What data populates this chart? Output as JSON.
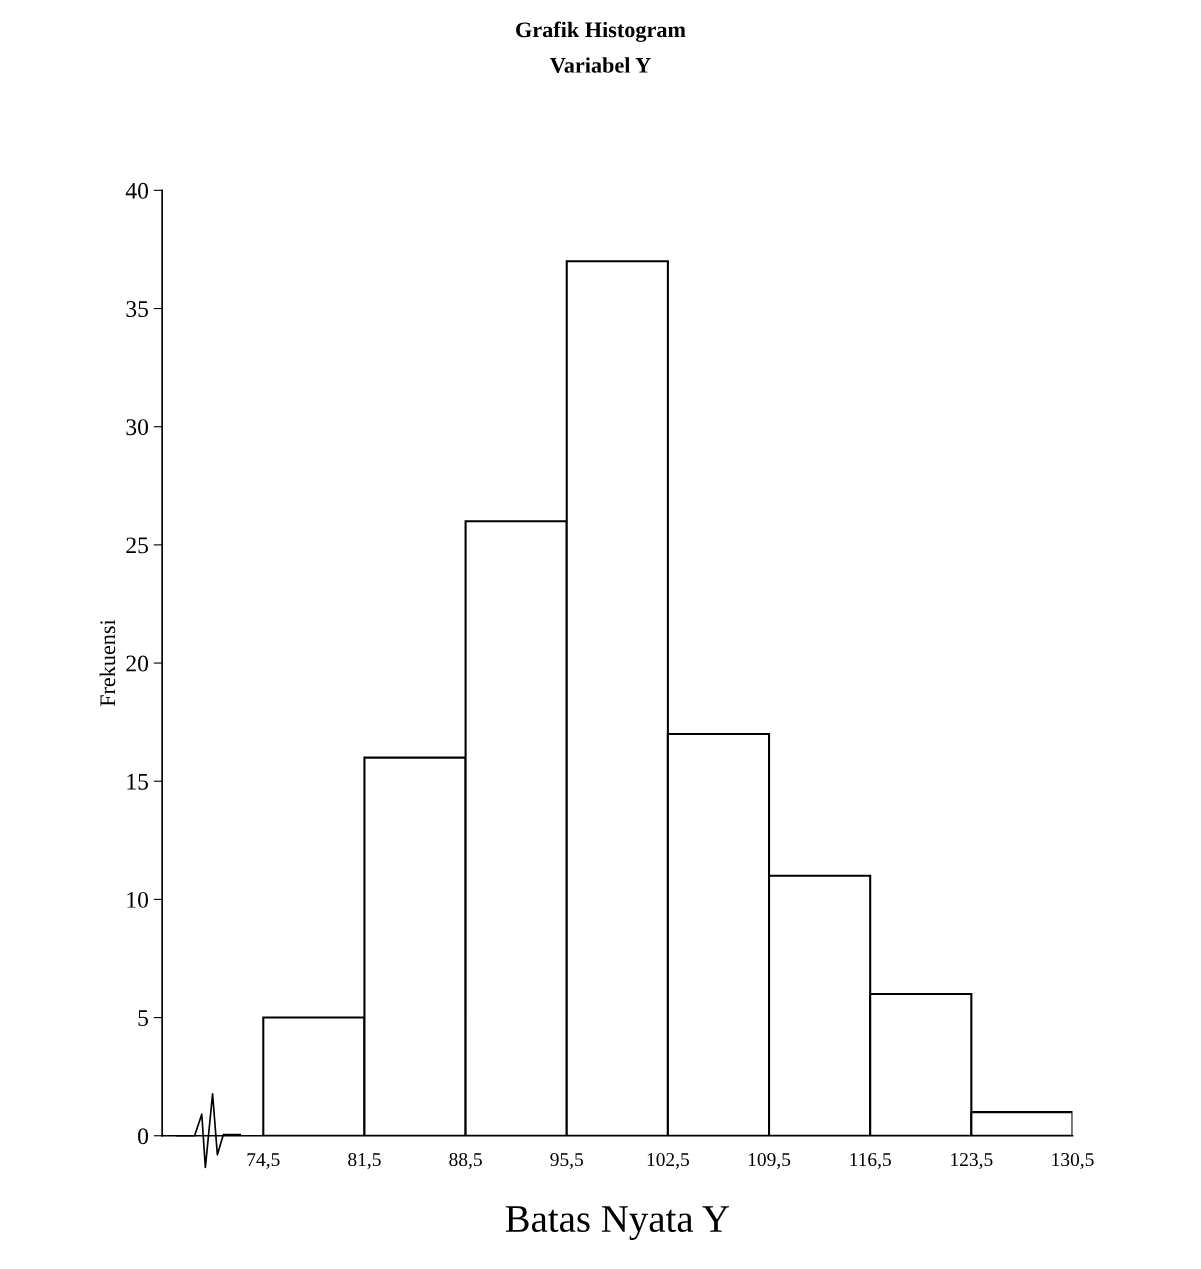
{
  "chart_data": {
    "type": "histogram",
    "title": "Grafik Histogram",
    "subtitle": "Variabel Y",
    "xlabel": "Batas Nyata Y",
    "ylabel": "Frekuensi",
    "bins": [
      74.5,
      81.5,
      88.5,
      95.5,
      102.5,
      109.5,
      116.5,
      123.5,
      130.5
    ],
    "values": [
      5,
      16,
      26,
      37,
      17,
      11,
      6,
      1
    ],
    "color": "#ffffff",
    "xlim": [
      67.5,
      130.5
    ],
    "xticks": [
      {
        "value": 74.5,
        "label": "74,5"
      },
      {
        "value": 81.5,
        "label": "81,5"
      },
      {
        "value": 88.5,
        "label": "88,5"
      },
      {
        "value": 95.5,
        "label": "95,5"
      },
      {
        "value": 102.5,
        "label": "102,5"
      },
      {
        "value": 109.5,
        "label": "109,5"
      },
      {
        "value": 116.5,
        "label": "116,5"
      },
      {
        "value": 123.5,
        "label": "123,5"
      },
      {
        "value": 130.5,
        "label": "130,5"
      }
    ],
    "ylim": [
      0,
      40
    ],
    "yticks": [
      0,
      5,
      10,
      15,
      20,
      25,
      30,
      35,
      40
    ],
    "grid": false,
    "legend": false
  }
}
